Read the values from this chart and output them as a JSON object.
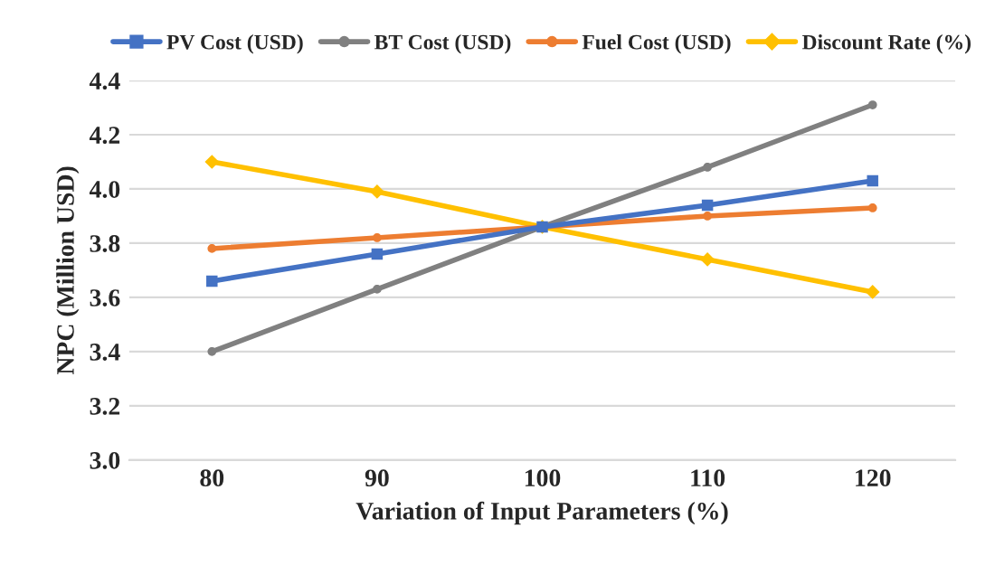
{
  "chart_data": {
    "type": "line",
    "xlabel": "Variation of Input Parameters (%)",
    "ylabel": "NPC (Million USD)",
    "categories": [
      "80",
      "90",
      "100",
      "110",
      "120"
    ],
    "series": [
      {
        "name": "PV Cost (USD)",
        "color": "#4472c4",
        "marker": "square",
        "values": [
          3.66,
          3.76,
          3.86,
          3.94,
          4.03
        ]
      },
      {
        "name": "BT Cost (USD)",
        "color": "#808080",
        "marker": "circle",
        "values": [
          3.4,
          3.63,
          3.86,
          4.08,
          4.31
        ]
      },
      {
        "name": "Fuel Cost (USD)",
        "color": "#ed7d31",
        "marker": "circle",
        "values": [
          3.78,
          3.82,
          3.86,
          3.9,
          3.93
        ]
      },
      {
        "name": "Discount Rate (%)",
        "color": "#ffc000",
        "marker": "diamond",
        "values": [
          4.1,
          3.99,
          3.86,
          3.74,
          3.62
        ]
      }
    ],
    "ylim": [
      3.0,
      4.4
    ],
    "yticks": [
      {
        "value": 3.0,
        "label": "3.0"
      },
      {
        "value": 3.2,
        "label": "3.2"
      },
      {
        "value": 3.4,
        "label": "3.4"
      },
      {
        "value": 3.6,
        "label": "3.6"
      },
      {
        "value": 3.8,
        "label": "3.8"
      },
      {
        "value": 4.0,
        "label": "4.0"
      },
      {
        "value": 4.2,
        "label": "4.2"
      },
      {
        "value": 4.4,
        "label": "4.4"
      }
    ],
    "grid": "y",
    "legend": "top",
    "line_style": "solid"
  }
}
